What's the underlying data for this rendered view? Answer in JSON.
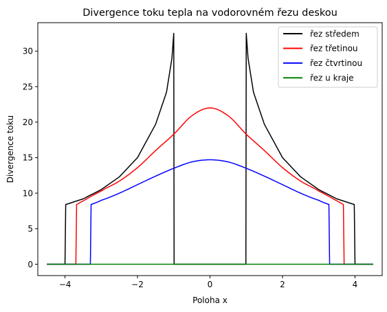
{
  "chart_data": {
    "type": "line",
    "title": "Divergence toku tepla na vodorovném řezu deskou",
    "xlabel": "Poloha x",
    "ylabel": "Divergence toku",
    "xlim": [
      -4.75,
      4.75
    ],
    "ylim": [
      -1.6,
      34.0
    ],
    "xticks": [
      -4,
      -2,
      0,
      2,
      4
    ],
    "yticks": [
      0,
      5,
      10,
      15,
      20,
      25,
      30
    ],
    "xtick_labels": [
      "−4",
      "−2",
      "0",
      "2",
      "4"
    ],
    "ytick_labels": [
      "0",
      "5",
      "10",
      "15",
      "20",
      "25",
      "30"
    ],
    "grid": false,
    "legend_position": "top-right",
    "series": [
      {
        "name": "řez středem",
        "color": "#000000",
        "x": [
          -4.5,
          -4.0,
          -3.98,
          -3.5,
          -3.0,
          -2.5,
          -2.0,
          -1.5,
          -1.2,
          -1.05,
          -1.0,
          -0.99,
          0.99,
          1.0,
          1.05,
          1.2,
          1.5,
          2.0,
          2.5,
          3.0,
          3.5,
          3.98,
          4.0,
          4.5
        ],
        "y": [
          0,
          0,
          8.4,
          9.2,
          10.5,
          12.3,
          15.0,
          19.7,
          24.2,
          29.0,
          32.5,
          0,
          0,
          32.5,
          29.0,
          24.2,
          19.7,
          15.0,
          12.3,
          10.5,
          9.2,
          8.4,
          0,
          0
        ]
      },
      {
        "name": "řez třetinou",
        "color": "#ff0000",
        "x": [
          -4.5,
          -3.7,
          -3.68,
          -3.0,
          -2.5,
          -2.0,
          -1.5,
          -1.0,
          -0.5,
          0.0,
          0.5,
          1.0,
          1.5,
          2.0,
          2.5,
          3.0,
          3.68,
          3.7,
          4.5
        ],
        "y": [
          0,
          0,
          8.4,
          10.3,
          11.7,
          13.6,
          16.0,
          18.3,
          20.9,
          22.0,
          20.9,
          18.3,
          16.0,
          13.6,
          11.7,
          10.3,
          8.4,
          0,
          0
        ],
        "smooth": true
      },
      {
        "name": "řez čtvrtinou",
        "color": "#0000ff",
        "x": [
          -4.5,
          -3.3,
          -3.28,
          -3.0,
          -2.5,
          -2.0,
          -1.5,
          -1.0,
          -0.5,
          0.0,
          0.5,
          1.0,
          1.5,
          2.0,
          2.5,
          3.0,
          3.28,
          3.3,
          4.5
        ],
        "y": [
          0,
          0,
          8.4,
          9.0,
          10.0,
          11.2,
          12.4,
          13.5,
          14.4,
          14.7,
          14.4,
          13.5,
          12.4,
          11.2,
          10.0,
          9.0,
          8.4,
          0,
          0
        ],
        "smooth": true
      },
      {
        "name": "řez u kraje",
        "color": "#008000",
        "x": [
          -4.5,
          4.5
        ],
        "y": [
          0,
          0
        ]
      }
    ]
  }
}
